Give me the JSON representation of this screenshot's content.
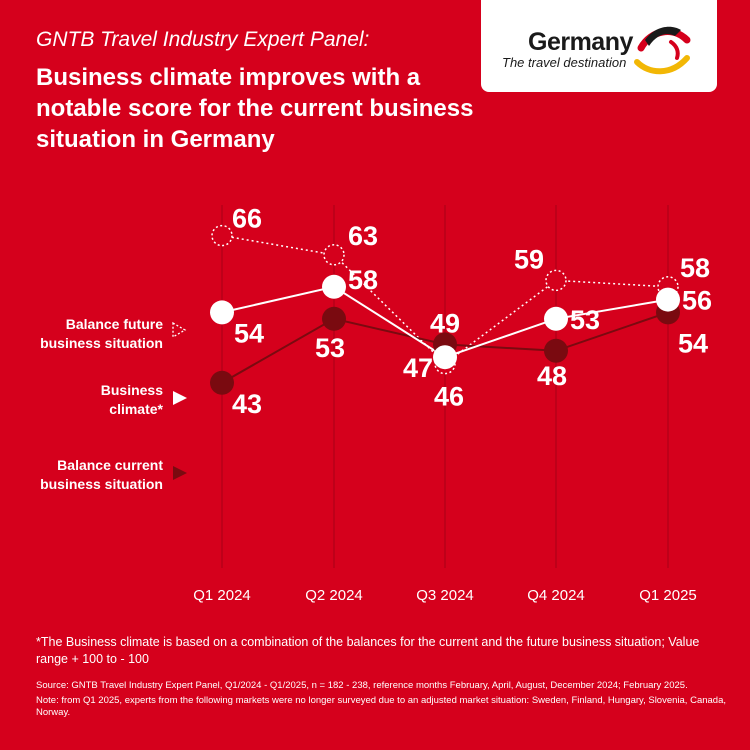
{
  "header": {
    "kicker": "GNTB Travel Industry Expert Panel:",
    "title": "Business climate improves with a notable score for the current business situation in Germany"
  },
  "logo": {
    "name": "Germany",
    "tagline": "The travel destination",
    "icon": "eagle-swoosh-icon"
  },
  "colors": {
    "background": "#d5001c",
    "current_line": "#7a0a10",
    "text": "#ffffff"
  },
  "chart_data": {
    "type": "line",
    "categories": [
      "Q1 2024",
      "Q2 2024",
      "Q3 2024",
      "Q4 2024",
      "Q1 2025"
    ],
    "series": [
      {
        "name": "Balance future business situation",
        "style": "dotted",
        "values": [
          66,
          63,
          46,
          59,
          58
        ]
      },
      {
        "name": "Business climate*",
        "style": "solid-white",
        "values": [
          54,
          58,
          47,
          53,
          56
        ]
      },
      {
        "name": "Balance current business situation",
        "style": "solid-dark",
        "values": [
          43,
          53,
          49,
          48,
          54
        ]
      }
    ],
    "legend_placement": "left",
    "grid": "vertical",
    "y_axis_shown": false
  },
  "footnote": "*The Business climate is based on a combination of the balances for the current and the future business situation; Value range + 100 to - 100",
  "source": "Source:  GNTB Travel Industry Expert Panel, Q1/2024 - Q1/2025, n = 182 - 238, reference months February, April, August, December 2024; February 2025.",
  "note": "Note: from Q1 2025, experts from the following markets were no longer surveyed due to an adjusted market situation: Sweden, Finland, Hungary, Slovenia, Canada, Norway."
}
